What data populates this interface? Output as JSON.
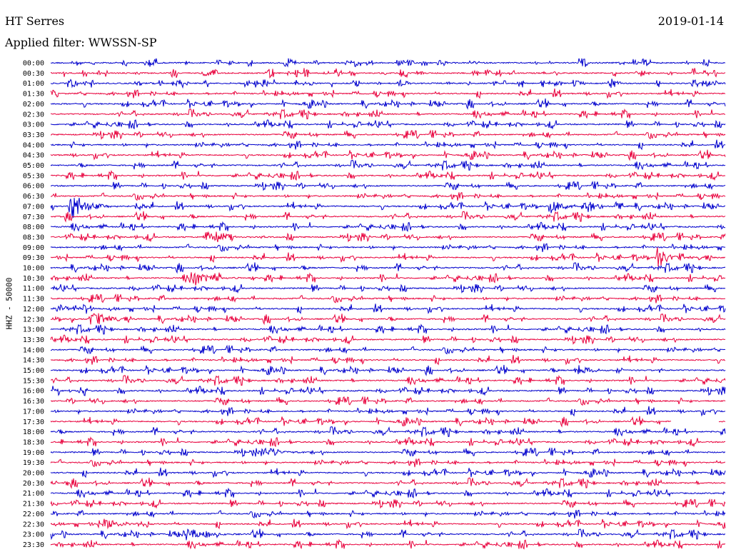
{
  "header": {
    "station": "HT Serres",
    "date": "2019-01-14",
    "filter": "Applied filter: WWSSN-SP"
  },
  "chart_data": {
    "type": "line",
    "title": "HT Serres",
    "subtitle": "Applied filter: WWSSN-SP",
    "ylabel": "HHZ - 50000",
    "xlabel": "",
    "colors": [
      "#0000cc",
      "#e8003c"
    ],
    "grid": false,
    "legend": "none",
    "row_labels": [
      "00:00",
      "00:30",
      "01:00",
      "01:30",
      "02:00",
      "02:30",
      "03:00",
      "03:30",
      "04:00",
      "04:30",
      "05:00",
      "05:30",
      "06:00",
      "06:30",
      "07:00",
      "07:30",
      "08:00",
      "08:30",
      "09:00",
      "09:30",
      "10:00",
      "10:30",
      "11:00",
      "11:30",
      "12:00",
      "12:30",
      "13:00",
      "13:30",
      "14:00",
      "14:30",
      "15:00",
      "15:30",
      "16:00",
      "16:30",
      "17:00",
      "17:30",
      "18:00",
      "18:30",
      "19:00",
      "19:30",
      "20:00",
      "20:30",
      "21:00",
      "21:30",
      "22:00",
      "22:30",
      "23:00",
      "23:30"
    ],
    "events": [
      {
        "row": "07:00",
        "position": 0.03,
        "amplitude": 1.0
      },
      {
        "row": "07:00",
        "position": 0.74,
        "amplitude": 0.5
      },
      {
        "row": "08:30",
        "position": 0.23,
        "amplitude": 0.4
      },
      {
        "row": "09:30",
        "position": 0.9,
        "amplitude": 0.6
      },
      {
        "row": "10:30",
        "position": 0.21,
        "amplitude": 0.6
      },
      {
        "row": "12:00",
        "position": 0.01,
        "amplitude": 0.3
      },
      {
        "row": "12:30",
        "position": 0.06,
        "amplitude": 0.6
      },
      {
        "row": "15:00",
        "position": 0.78,
        "amplitude": 0.4
      },
      {
        "row": "19:00",
        "position": 0.31,
        "amplitude": 0.4
      },
      {
        "row": "22:30",
        "position": 0.08,
        "amplitude": 0.5
      },
      {
        "row": "23:00",
        "position": 0.2,
        "amplitude": 0.5
      }
    ],
    "gaps": [
      {
        "row": "17:30",
        "start": 0.92,
        "end": 0.99
      }
    ]
  }
}
